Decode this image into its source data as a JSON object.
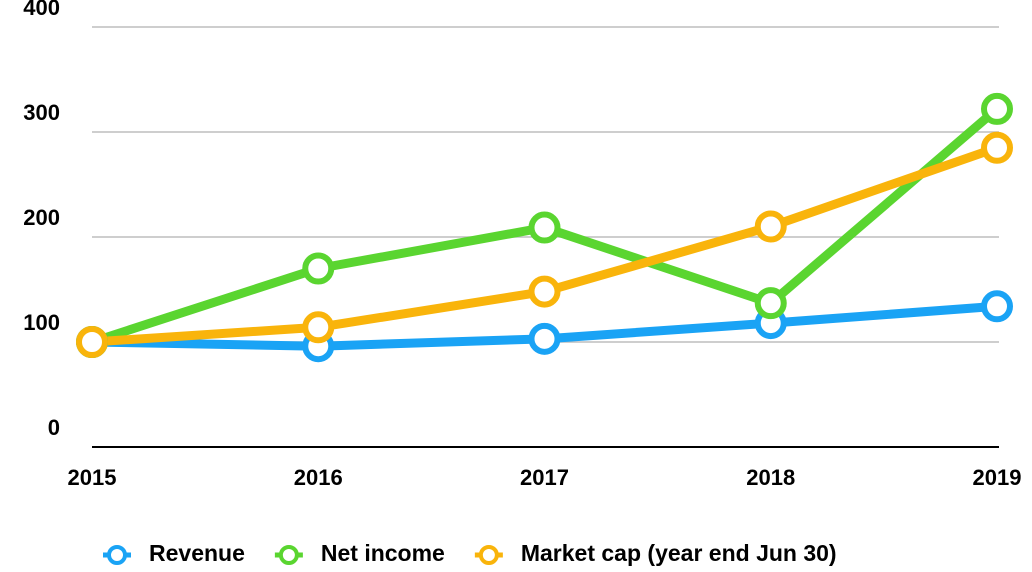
{
  "chart_data": {
    "type": "line",
    "categories": [
      "2015",
      "2016",
      "2017",
      "2018",
      "2019"
    ],
    "series": [
      {
        "name": "Revenue",
        "color": "#1aa3f5",
        "values": [
          100,
          96,
          103,
          118,
          134
        ]
      },
      {
        "name": "Net income",
        "color": "#5ad530",
        "values": [
          100,
          170,
          209,
          137,
          322
        ]
      },
      {
        "name": "Market cap (year end Jun 30)",
        "color": "#f9b40b",
        "values": [
          100,
          114,
          148,
          210,
          285
        ]
      }
    ],
    "ylim": [
      0,
      400
    ],
    "yticks": [
      0,
      100,
      200,
      300,
      400
    ],
    "grid": true,
    "legend": "bottom"
  }
}
